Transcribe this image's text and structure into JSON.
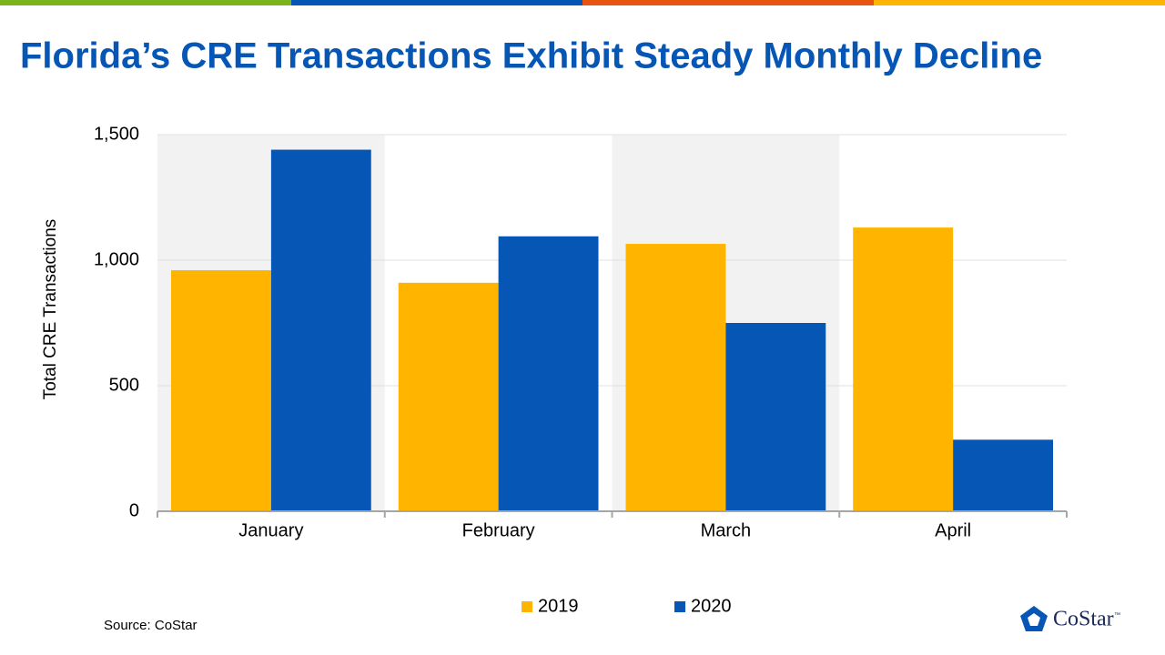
{
  "chart_data": {
    "type": "bar",
    "title": "Florida’s CRE Transactions Exhibit Steady Monthly Decline",
    "y_label": "Total CRE Transactions",
    "categories": [
      "January",
      "February",
      "March",
      "April"
    ],
    "series": [
      {
        "name": "2019",
        "color": "#ffb400",
        "values": [
          960,
          910,
          1065,
          1130
        ]
      },
      {
        "name": "2020",
        "color": "#0556b5",
        "values": [
          1440,
          1095,
          750,
          285
        ]
      }
    ],
    "ylim": [
      0,
      1500
    ],
    "yticks": [
      0,
      500,
      {
        "value": 1000,
        "label": "1,000"
      },
      {
        "value": 1500,
        "label": "1,500"
      }
    ],
    "grid": true,
    "legend": "bottom"
  },
  "footer": {
    "source": "Source:  CoStar",
    "logo": "CoStar",
    "logo_mark": "™"
  }
}
